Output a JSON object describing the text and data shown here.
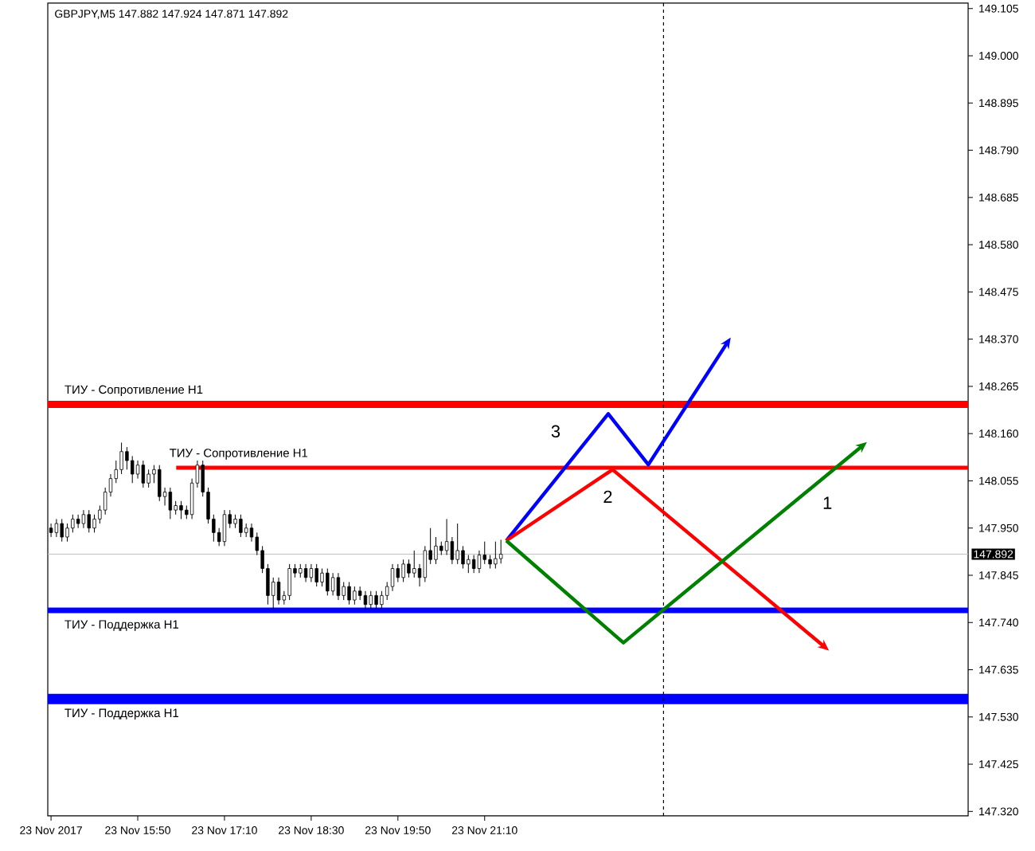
{
  "chart_data": {
    "type": "candlestick",
    "title": "GBPJPY,M5  147.882 147.924 147.871 147.892",
    "x": [
      "2017-11-23T14:30",
      "2017-11-23T14:35",
      "2017-11-23T14:40",
      "2017-11-23T14:45",
      "2017-11-23T14:50",
      "2017-11-23T14:55",
      "2017-11-23T15:00",
      "2017-11-23T15:05",
      "2017-11-23T15:10",
      "2017-11-23T15:15",
      "2017-11-23T15:20",
      "2017-11-23T15:25",
      "2017-11-23T15:30",
      "2017-11-23T15:35",
      "2017-11-23T15:40",
      "2017-11-23T15:45",
      "2017-11-23T15:50",
      "2017-11-23T15:55",
      "2017-11-23T16:00",
      "2017-11-23T16:05",
      "2017-11-23T16:10",
      "2017-11-23T16:15",
      "2017-11-23T16:20",
      "2017-11-23T16:25",
      "2017-11-23T16:30",
      "2017-11-23T16:35",
      "2017-11-23T16:40",
      "2017-11-23T16:45",
      "2017-11-23T16:50",
      "2017-11-23T16:55",
      "2017-11-23T17:00",
      "2017-11-23T17:05",
      "2017-11-23T17:10",
      "2017-11-23T17:15",
      "2017-11-23T17:20",
      "2017-11-23T17:25",
      "2017-11-23T17:30",
      "2017-11-23T17:35",
      "2017-11-23T17:40",
      "2017-11-23T17:45",
      "2017-11-23T17:50",
      "2017-11-23T17:55",
      "2017-11-23T18:00",
      "2017-11-23T18:05",
      "2017-11-23T18:10",
      "2017-11-23T18:15",
      "2017-11-23T18:20",
      "2017-11-23T18:25",
      "2017-11-23T18:30",
      "2017-11-23T18:35",
      "2017-11-23T18:40",
      "2017-11-23T18:45",
      "2017-11-23T18:50",
      "2017-11-23T18:55",
      "2017-11-23T19:00",
      "2017-11-23T19:05",
      "2017-11-23T19:10",
      "2017-11-23T19:15",
      "2017-11-23T19:20",
      "2017-11-23T19:25",
      "2017-11-23T19:30",
      "2017-11-23T19:35",
      "2017-11-23T19:40",
      "2017-11-23T19:45",
      "2017-11-23T19:50",
      "2017-11-23T19:55",
      "2017-11-23T20:00",
      "2017-11-23T20:05",
      "2017-11-23T20:10",
      "2017-11-23T20:15",
      "2017-11-23T20:20",
      "2017-11-23T20:25",
      "2017-11-23T20:30",
      "2017-11-23T20:35",
      "2017-11-23T20:40",
      "2017-11-23T20:45",
      "2017-11-23T20:50",
      "2017-11-23T20:55",
      "2017-11-23T21:00",
      "2017-11-23T21:05",
      "2017-11-23T21:10",
      "2017-11-23T21:15",
      "2017-11-23T21:20",
      "2017-11-23T21:25"
    ],
    "ohlc": [
      [
        147.95,
        147.96,
        147.93,
        147.94
      ],
      [
        147.94,
        147.97,
        147.93,
        147.96
      ],
      [
        147.96,
        147.97,
        147.92,
        147.93
      ],
      [
        147.93,
        147.96,
        147.92,
        147.95
      ],
      [
        147.95,
        147.98,
        147.94,
        147.97
      ],
      [
        147.97,
        147.98,
        147.95,
        147.96
      ],
      [
        147.96,
        147.99,
        147.95,
        147.98
      ],
      [
        147.98,
        147.99,
        147.94,
        147.95
      ],
      [
        147.95,
        147.98,
        147.94,
        147.97
      ],
      [
        147.97,
        148.0,
        147.96,
        147.99
      ],
      [
        147.99,
        148.04,
        147.98,
        148.03
      ],
      [
        148.03,
        148.07,
        148.02,
        148.06
      ],
      [
        148.06,
        148.1,
        148.05,
        148.08
      ],
      [
        148.08,
        148.14,
        148.07,
        148.12
      ],
      [
        148.12,
        148.13,
        148.08,
        148.1
      ],
      [
        148.1,
        148.11,
        148.05,
        148.07
      ],
      [
        148.07,
        148.1,
        148.06,
        148.09
      ],
      [
        148.09,
        148.1,
        148.04,
        148.05
      ],
      [
        148.05,
        148.08,
        148.04,
        148.07
      ],
      [
        148.07,
        148.09,
        148.05,
        148.08
      ],
      [
        148.08,
        148.09,
        148.01,
        148.02
      ],
      [
        148.02,
        148.04,
        148.0,
        148.03
      ],
      [
        148.03,
        148.04,
        147.97,
        147.99
      ],
      [
        147.99,
        148.01,
        147.98,
        148.0
      ],
      [
        148.0,
        148.01,
        147.97,
        147.99
      ],
      [
        147.99,
        148.0,
        147.97,
        147.98
      ],
      [
        147.98,
        148.06,
        147.97,
        148.05
      ],
      [
        148.05,
        148.1,
        148.04,
        148.09
      ],
      [
        148.09,
        148.1,
        148.02,
        148.03
      ],
      [
        148.03,
        148.04,
        147.96,
        147.97
      ],
      [
        147.97,
        147.98,
        147.92,
        147.94
      ],
      [
        147.94,
        147.95,
        147.91,
        147.92
      ],
      [
        147.92,
        147.99,
        147.91,
        147.98
      ],
      [
        147.98,
        147.99,
        147.95,
        147.96
      ],
      [
        147.96,
        147.98,
        147.95,
        147.97
      ],
      [
        147.97,
        147.98,
        147.93,
        147.94
      ],
      [
        147.94,
        147.96,
        147.93,
        147.95
      ],
      [
        147.95,
        147.96,
        147.92,
        147.93
      ],
      [
        147.93,
        147.94,
        147.89,
        147.9
      ],
      [
        147.9,
        147.91,
        147.85,
        147.86
      ],
      [
        147.86,
        147.87,
        147.78,
        147.8
      ],
      [
        147.8,
        147.84,
        147.77,
        147.83
      ],
      [
        147.83,
        147.84,
        147.78,
        147.79
      ],
      [
        147.79,
        147.81,
        147.78,
        147.8
      ],
      [
        147.8,
        147.87,
        147.79,
        147.86
      ],
      [
        147.86,
        147.87,
        147.84,
        147.85
      ],
      [
        147.85,
        147.87,
        147.84,
        147.86
      ],
      [
        147.86,
        147.87,
        147.83,
        147.84
      ],
      [
        147.84,
        147.87,
        147.83,
        147.86
      ],
      [
        147.86,
        147.87,
        147.82,
        147.83
      ],
      [
        147.83,
        147.86,
        147.82,
        147.85
      ],
      [
        147.85,
        147.86,
        147.8,
        147.81
      ],
      [
        147.81,
        147.85,
        147.8,
        147.84
      ],
      [
        147.84,
        147.85,
        147.79,
        147.8
      ],
      [
        147.8,
        147.83,
        147.79,
        147.82
      ],
      [
        147.82,
        147.83,
        147.78,
        147.79
      ],
      [
        147.79,
        147.82,
        147.78,
        147.81
      ],
      [
        147.81,
        147.82,
        147.79,
        147.8
      ],
      [
        147.8,
        147.81,
        147.77,
        147.78
      ],
      [
        147.78,
        147.81,
        147.77,
        147.8
      ],
      [
        147.8,
        147.81,
        147.77,
        147.78
      ],
      [
        147.78,
        147.81,
        147.77,
        147.8
      ],
      [
        147.8,
        147.83,
        147.79,
        147.82
      ],
      [
        147.82,
        147.87,
        147.81,
        147.86
      ],
      [
        147.86,
        147.87,
        147.83,
        147.84
      ],
      [
        147.84,
        147.88,
        147.83,
        147.87
      ],
      [
        147.87,
        147.88,
        147.84,
        147.85
      ],
      [
        147.85,
        147.9,
        147.84,
        147.86
      ],
      [
        147.86,
        147.87,
        147.82,
        147.84
      ],
      [
        147.84,
        147.91,
        147.83,
        147.9
      ],
      [
        147.9,
        147.95,
        147.87,
        147.88
      ],
      [
        147.88,
        147.93,
        147.87,
        147.91
      ],
      [
        147.91,
        147.92,
        147.89,
        147.9
      ],
      [
        147.9,
        147.97,
        147.89,
        147.92
      ],
      [
        147.92,
        147.93,
        147.87,
        147.88
      ],
      [
        147.88,
        147.96,
        147.87,
        147.9
      ],
      [
        147.9,
        147.91,
        147.86,
        147.87
      ],
      [
        147.87,
        147.89,
        147.85,
        147.88
      ],
      [
        147.88,
        147.89,
        147.85,
        147.86
      ],
      [
        147.86,
        147.9,
        147.85,
        147.89
      ],
      [
        147.89,
        147.92,
        147.87,
        147.88
      ],
      [
        147.88,
        147.89,
        147.86,
        147.87
      ],
      [
        147.87,
        147.92,
        147.86,
        147.882
      ],
      [
        147.882,
        147.924,
        147.871,
        147.892
      ]
    ],
    "series": [
      {
        "type": "line",
        "name": "3",
        "color": "#0000ff",
        "x": [
          "2017-11-23T21:30",
          "2017-11-23T23:04",
          "2017-11-23T23:41",
          "2017-11-24T00:53"
        ],
        "values": [
          147.922,
          148.204,
          148.091,
          148.359
        ]
      },
      {
        "type": "line",
        "name": "2",
        "color": "#ff0000",
        "x": [
          "2017-11-23T21:30",
          "2017-11-23T23:08",
          "2017-11-24T02:22"
        ],
        "values": [
          147.922,
          148.08,
          147.689
        ]
      },
      {
        "type": "line",
        "name": "1",
        "color": "#008000",
        "x": [
          "2017-11-23T21:30",
          "2017-11-23T23:18",
          "2017-11-24T02:57"
        ],
        "values": [
          147.922,
          147.695,
          148.13
        ]
      }
    ],
    "ref_lines": [
      {
        "axis": "y",
        "value": 148.225,
        "label": "ТИУ - Сопротивление H1",
        "color": "#ff0000"
      },
      {
        "axis": "y",
        "value": 148.084,
        "label": "ТИУ - Сопротивление H1",
        "color": "#ff0000"
      },
      {
        "axis": "y",
        "value": 147.767,
        "label": "ТИУ - Поддержка H1",
        "color": "#0000ff"
      },
      {
        "axis": "y",
        "value": 147.57,
        "label": "ТИУ - Поддержка H1",
        "color": "#0000ff"
      },
      {
        "axis": "y",
        "value": 147.892,
        "label": "147.892",
        "color": "#c0c0c0"
      },
      {
        "axis": "x",
        "value": "2017-11-23T23:55",
        "color": "#000000",
        "line_style": "dashed"
      }
    ],
    "xlim": [
      "2017-11-23T14:27",
      "2017-11-24T04:36"
    ],
    "xticks": [
      {
        "value": "2017-11-23T14:30",
        "label": "23 Nov 2017"
      },
      {
        "value": "2017-11-23T15:50",
        "label": "23 Nov 15:50"
      },
      {
        "value": "2017-11-23T17:10",
        "label": "23 Nov 17:10"
      },
      {
        "value": "2017-11-23T18:30",
        "label": "23 Nov 18:30"
      },
      {
        "value": "2017-11-23T19:50",
        "label": "23 Nov 19:50"
      },
      {
        "value": "2017-11-23T21:10",
        "label": "23 Nov 21:10"
      }
    ],
    "ylim": [
      147.31,
      149.117
    ],
    "yticks": [
      149.105,
      {
        "value": 149.0,
        "label": "149.000"
      },
      148.895,
      {
        "value": 148.79,
        "label": "148.790"
      },
      148.685,
      {
        "value": 148.58,
        "label": "148.580"
      },
      148.475,
      {
        "value": 148.37,
        "label": "148.370"
      },
      148.265,
      {
        "value": 148.16,
        "label": "148.160"
      },
      148.055,
      {
        "value": 147.95,
        "label": "147.950"
      },
      147.845,
      {
        "value": 147.74,
        "label": "147.740"
      },
      147.635,
      {
        "value": 147.53,
        "label": "147.530"
      },
      147.425,
      {
        "value": 147.32,
        "label": "147.320"
      }
    ],
    "grid": false
  }
}
